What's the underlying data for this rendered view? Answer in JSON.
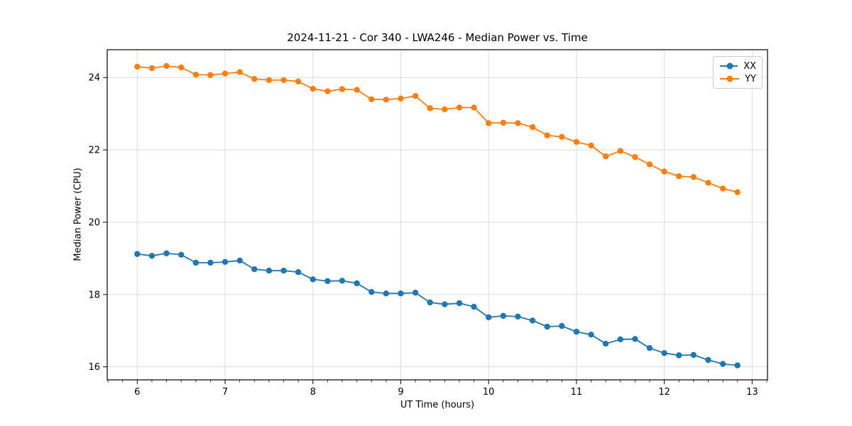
{
  "chart_data": {
    "type": "line",
    "title": "2024-11-21 - Cor 340 - LWA246 - Median Power vs. Time",
    "xlabel": "UT Time (hours)",
    "ylabel": "Median Power (CPU)",
    "xlim": [
      5.658,
      13.175
    ],
    "ylim": [
      15.64,
      24.77
    ],
    "x_ticks": [
      6,
      7,
      8,
      9,
      10,
      11,
      12,
      13
    ],
    "y_ticks": [
      16,
      18,
      20,
      22,
      24
    ],
    "x_minor_tick_step": 0.166667,
    "grid": true,
    "legend_position": "upper right",
    "grid_color": "#dcdcdc",
    "spine_color": "#000000",
    "x": [
      6.0,
      6.167,
      6.333,
      6.5,
      6.667,
      6.833,
      7.0,
      7.167,
      7.333,
      7.5,
      7.667,
      7.833,
      8.0,
      8.167,
      8.333,
      8.5,
      8.667,
      8.833,
      9.0,
      9.167,
      9.333,
      9.5,
      9.667,
      9.833,
      10.0,
      10.167,
      10.333,
      10.5,
      10.667,
      10.833,
      11.0,
      11.167,
      11.333,
      11.5,
      11.667,
      11.833,
      12.0,
      12.167,
      12.333,
      12.5,
      12.667,
      12.833
    ],
    "series": [
      {
        "name": "XX",
        "color": "#1f77b4",
        "values": [
          19.12,
          19.07,
          19.14,
          19.1,
          18.88,
          18.88,
          18.9,
          18.94,
          18.7,
          18.66,
          18.66,
          18.62,
          18.42,
          18.37,
          18.38,
          18.31,
          18.07,
          18.03,
          18.03,
          18.05,
          17.78,
          17.73,
          17.76,
          17.66,
          17.37,
          17.41,
          17.39,
          17.28,
          17.11,
          17.13,
          16.97,
          16.89,
          16.64,
          16.76,
          16.77,
          16.52,
          16.38,
          16.32,
          16.33,
          16.19,
          16.08,
          16.04
        ]
      },
      {
        "name": "YY",
        "color": "#ff7f0e",
        "values": [
          24.3,
          24.26,
          24.32,
          24.28,
          24.08,
          24.07,
          24.11,
          24.15,
          23.96,
          23.93,
          23.93,
          23.89,
          23.69,
          23.62,
          23.68,
          23.66,
          23.4,
          23.39,
          23.42,
          23.49,
          23.15,
          23.12,
          23.17,
          23.17,
          22.74,
          22.75,
          22.74,
          22.63,
          22.4,
          22.36,
          22.22,
          22.12,
          21.82,
          21.97,
          21.8,
          21.6,
          21.4,
          21.27,
          21.25,
          21.09,
          20.93,
          20.83
        ]
      }
    ]
  }
}
